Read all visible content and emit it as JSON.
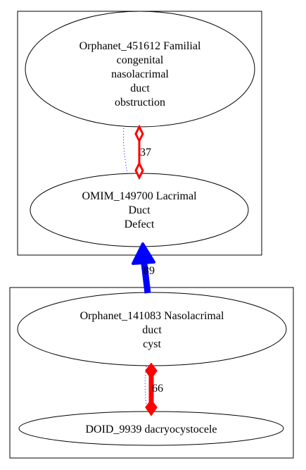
{
  "colors": {
    "background": "#ffffff",
    "stroke": "#000000",
    "red_edge": "#ff0000",
    "blue_edge": "#0000ff"
  },
  "clusters": [
    {
      "id": "cluster-top",
      "nodes": [
        {
          "id": "node-orphanet-451612",
          "lines": [
            "Orphanet_451612 Familial",
            "congenital",
            "nasolacrimal",
            "duct",
            "obstruction"
          ]
        },
        {
          "id": "node-omim-149700",
          "lines": [
            "OMIM_149700 Lacrimal",
            "Duct",
            "Defect"
          ]
        }
      ]
    },
    {
      "id": "cluster-bottom",
      "nodes": [
        {
          "id": "node-orphanet-141083",
          "lines": [
            "Orphanet_141083 Nasolacrimal",
            "duct",
            "cyst"
          ]
        },
        {
          "id": "node-doid-9939",
          "lines": [
            "DOID_9939 dacryocystocele"
          ]
        }
      ]
    }
  ],
  "edges": [
    {
      "id": "edge-451612-149700",
      "label": "37",
      "style": "red-diamond-thin"
    },
    {
      "id": "edge-141083-149700",
      "label": "89",
      "style": "blue-arrow-thick"
    },
    {
      "id": "edge-141083-9939",
      "label": "66",
      "style": "red-diamond-thick"
    }
  ]
}
